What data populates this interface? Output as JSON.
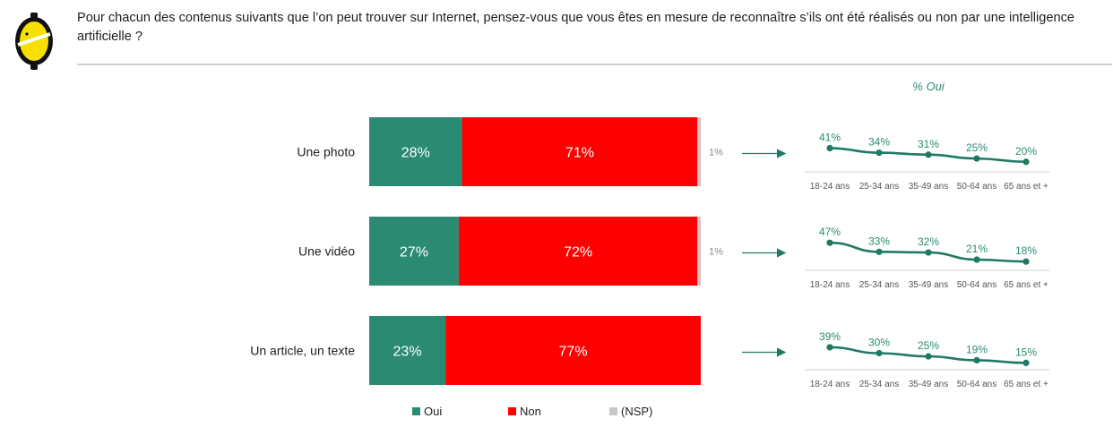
{
  "question": "Pour chacun des contenus suivants que l’on peut trouver sur Internet, pensez-vous que vous êtes en mesure de reconnaître s’ils ont été réalisés ou non par une intelligence artificielle ?",
  "colors": {
    "oui": "#2b8a72",
    "non": "#ff0000",
    "nsp": "#c8c8c8",
    "trend": "#1f7a64",
    "logo": "#f5e000"
  },
  "chart_data": [
    {
      "type": "bar",
      "orientation": "horizontal",
      "stacked": true,
      "categories": [
        "Une photo",
        "Une vidéo",
        "Un article, un texte"
      ],
      "series": [
        {
          "name": "Oui",
          "values": [
            28,
            27,
            23
          ],
          "labels": [
            "28%",
            "27%",
            "23%"
          ]
        },
        {
          "name": "Non",
          "values": [
            71,
            72,
            77
          ],
          "labels": [
            "71%",
            "72%",
            "77%"
          ]
        },
        {
          "name": "(NSP)",
          "values": [
            1,
            1,
            0
          ],
          "labels": [
            "1%",
            "1%",
            ""
          ]
        }
      ],
      "legend": "bottom"
    },
    {
      "type": "line",
      "title": "% Oui",
      "x": [
        "18-24 ans",
        "25-34 ans",
        "35-49 ans",
        "50-64 ans",
        "65 ans et +"
      ],
      "panels": [
        {
          "category": "Une photo",
          "values": [
            41,
            34,
            31,
            25,
            20
          ],
          "labels": [
            "41%",
            "34%",
            "31%",
            "25%",
            "20%"
          ]
        },
        {
          "category": "Une vidéo",
          "values": [
            47,
            33,
            32,
            21,
            18
          ],
          "labels": [
            "47%",
            "33%",
            "32%",
            "21%",
            "18%"
          ]
        },
        {
          "category": "Un article, un texte",
          "values": [
            39,
            30,
            25,
            19,
            15
          ],
          "labels": [
            "39%",
            "30%",
            "25%",
            "19%",
            "15%"
          ]
        }
      ]
    }
  ]
}
